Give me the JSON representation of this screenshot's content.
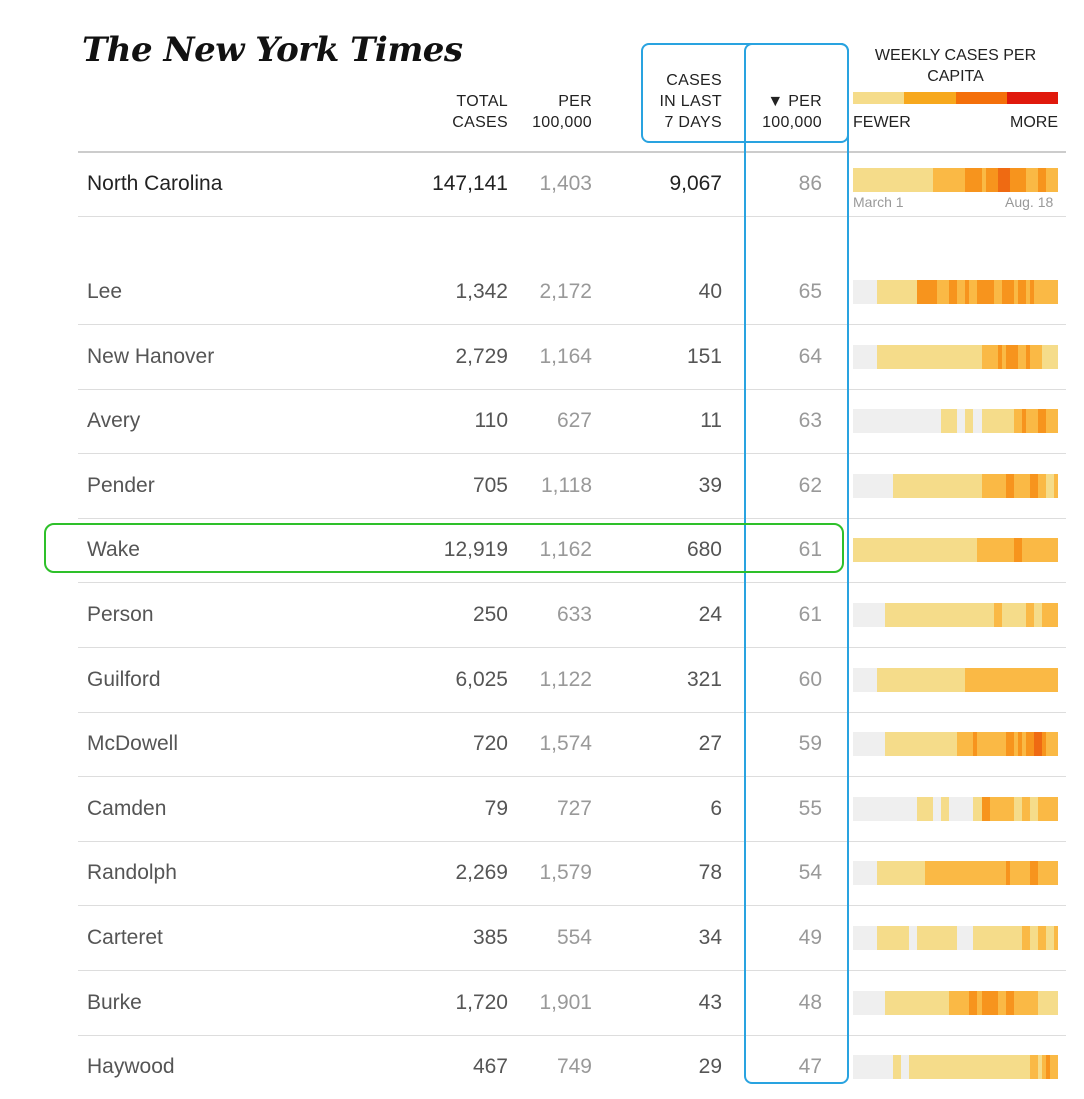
{
  "brand": {
    "logo": "The New York Times"
  },
  "headers": {
    "total_cases": [
      "TOTAL",
      "CASES"
    ],
    "per_100k": [
      "PER",
      "100,000"
    ],
    "cases_7_days": [
      "CASES",
      "IN LAST",
      "7 DAYS"
    ],
    "per_100k_7": [
      "▼ PER",
      "100,000"
    ]
  },
  "legend": {
    "title_lines": [
      "WEEKLY CASES PER",
      "CAPITA"
    ],
    "fewer": "FEWER",
    "more": "MORE",
    "colors": [
      "#f5dc8a",
      "#f7a81d",
      "#f46f0a",
      "#e0190c"
    ]
  },
  "state": {
    "name": "North Carolina",
    "total": "147,141",
    "per100k": "1,403",
    "last7": "9,067",
    "per100k7": "86",
    "start_label": "March 1",
    "end_label": "Aug. 18",
    "spark": [
      1,
      1,
      1,
      1,
      1,
      1,
      1,
      1,
      1,
      1,
      1,
      1,
      1,
      1,
      1,
      1,
      1,
      1,
      1,
      1,
      2,
      2,
      2,
      2,
      2,
      2,
      2,
      2,
      3,
      3,
      3,
      3,
      2,
      3,
      3,
      3,
      4,
      4,
      4,
      3,
      3,
      3,
      3,
      2,
      2,
      2,
      3,
      3,
      2,
      2,
      2
    ]
  },
  "counties": [
    {
      "name": "Lee",
      "total": "1,342",
      "per100k": "2,172",
      "last7": "40",
      "per100k7": "65",
      "spark": [
        0,
        0,
        0,
        0,
        0,
        0,
        1,
        1,
        1,
        1,
        1,
        1,
        1,
        1,
        1,
        1,
        3,
        3,
        3,
        3,
        3,
        2,
        2,
        2,
        3,
        3,
        2,
        2,
        3,
        2,
        2,
        3,
        3,
        3,
        3,
        2,
        2,
        3,
        3,
        3,
        2,
        3,
        3,
        2,
        3,
        2,
        2,
        2,
        2,
        2,
        2
      ]
    },
    {
      "name": "New Hanover",
      "total": "2,729",
      "per100k": "1,164",
      "last7": "151",
      "per100k7": "64",
      "spark": [
        0,
        0,
        0,
        0,
        0,
        0,
        1,
        1,
        1,
        1,
        1,
        1,
        1,
        1,
        1,
        1,
        1,
        1,
        1,
        1,
        1,
        1,
        1,
        1,
        1,
        1,
        1,
        1,
        1,
        1,
        1,
        1,
        2,
        2,
        2,
        2,
        3,
        2,
        3,
        3,
        3,
        2,
        2,
        3,
        2,
        2,
        2,
        1,
        1,
        1,
        1
      ]
    },
    {
      "name": "Avery",
      "total": "110",
      "per100k": "627",
      "last7": "11",
      "per100k7": "63",
      "spark": [
        0,
        0,
        0,
        0,
        0,
        0,
        0,
        0,
        0,
        0,
        0,
        0,
        0,
        0,
        0,
        0,
        0,
        0,
        0,
        0,
        0,
        0,
        1,
        1,
        1,
        1,
        0,
        0,
        1,
        1,
        0,
        0,
        1,
        1,
        1,
        1,
        1,
        1,
        1,
        1,
        2,
        2,
        3,
        2,
        2,
        2,
        3,
        3,
        2,
        2,
        2
      ]
    },
    {
      "name": "Pender",
      "total": "705",
      "per100k": "1,118",
      "last7": "39",
      "per100k7": "62",
      "spark": [
        0,
        0,
        0,
        0,
        0,
        0,
        0,
        0,
        0,
        0,
        1,
        1,
        1,
        1,
        1,
        1,
        1,
        1,
        1,
        1,
        1,
        1,
        1,
        1,
        1,
        1,
        1,
        1,
        1,
        1,
        1,
        1,
        2,
        2,
        2,
        2,
        2,
        2,
        3,
        3,
        2,
        2,
        2,
        2,
        3,
        3,
        2,
        2,
        1,
        1,
        2
      ]
    },
    {
      "name": "Wake",
      "total": "12,919",
      "per100k": "1,162",
      "last7": "680",
      "per100k7": "61",
      "spark": [
        1,
        1,
        1,
        1,
        1,
        1,
        1,
        1,
        1,
        1,
        1,
        1,
        1,
        1,
        1,
        1,
        1,
        1,
        1,
        1,
        1,
        1,
        1,
        1,
        1,
        1,
        1,
        1,
        1,
        1,
        1,
        2,
        2,
        2,
        2,
        2,
        2,
        2,
        2,
        2,
        3,
        3,
        2,
        2,
        2,
        2,
        2,
        2,
        2,
        2,
        2
      ]
    },
    {
      "name": "Person",
      "total": "250",
      "per100k": "633",
      "last7": "24",
      "per100k7": "61",
      "spark": [
        0,
        0,
        0,
        0,
        0,
        0,
        0,
        0,
        1,
        1,
        1,
        1,
        1,
        1,
        1,
        1,
        1,
        1,
        1,
        1,
        1,
        1,
        1,
        1,
        1,
        1,
        1,
        1,
        1,
        1,
        1,
        1,
        1,
        1,
        1,
        2,
        2,
        1,
        1,
        1,
        1,
        1,
        1,
        2,
        2,
        1,
        1,
        2,
        2,
        2,
        2
      ]
    },
    {
      "name": "Guilford",
      "total": "6,025",
      "per100k": "1,122",
      "last7": "321",
      "per100k7": "60",
      "spark": [
        0,
        0,
        0,
        0,
        0,
        0,
        1,
        1,
        1,
        1,
        1,
        1,
        1,
        1,
        1,
        1,
        1,
        1,
        1,
        1,
        1,
        1,
        1,
        1,
        1,
        1,
        1,
        1,
        2,
        2,
        2,
        2,
        2,
        2,
        2,
        2,
        2,
        2,
        2,
        2,
        2,
        2,
        2,
        2,
        2,
        2,
        2,
        2,
        2,
        2,
        2
      ]
    },
    {
      "name": "McDowell",
      "total": "720",
      "per100k": "1,574",
      "last7": "27",
      "per100k7": "59",
      "spark": [
        0,
        0,
        0,
        0,
        0,
        0,
        0,
        0,
        1,
        1,
        1,
        1,
        1,
        1,
        1,
        1,
        1,
        1,
        1,
        1,
        1,
        1,
        1,
        1,
        1,
        1,
        2,
        2,
        2,
        2,
        3,
        2,
        2,
        2,
        2,
        2,
        2,
        2,
        3,
        3,
        2,
        3,
        2,
        3,
        3,
        4,
        4,
        3,
        2,
        2,
        2
      ]
    },
    {
      "name": "Camden",
      "total": "79",
      "per100k": "727",
      "last7": "6",
      "per100k7": "55",
      "spark": [
        0,
        0,
        0,
        0,
        0,
        0,
        0,
        0,
        0,
        0,
        0,
        0,
        0,
        0,
        0,
        0,
        1,
        1,
        1,
        1,
        0,
        0,
        1,
        1,
        0,
        0,
        0,
        0,
        0,
        0,
        1,
        1,
        3,
        3,
        2,
        2,
        2,
        2,
        2,
        2,
        1,
        1,
        2,
        2,
        1,
        1,
        2,
        2,
        2,
        2,
        2
      ]
    },
    {
      "name": "Randolph",
      "total": "2,269",
      "per100k": "1,579",
      "last7": "78",
      "per100k7": "54",
      "spark": [
        0,
        0,
        0,
        0,
        0,
        0,
        1,
        1,
        1,
        1,
        1,
        1,
        1,
        1,
        1,
        1,
        1,
        1,
        2,
        2,
        2,
        2,
        2,
        2,
        2,
        2,
        2,
        2,
        2,
        2,
        2,
        2,
        2,
        2,
        2,
        2,
        2,
        2,
        3,
        2,
        2,
        2,
        2,
        2,
        3,
        3,
        2,
        2,
        2,
        2,
        2
      ]
    },
    {
      "name": "Carteret",
      "total": "385",
      "per100k": "554",
      "last7": "34",
      "per100k7": "49",
      "spark": [
        0,
        0,
        0,
        0,
        0,
        0,
        1,
        1,
        1,
        1,
        1,
        1,
        1,
        1,
        0,
        0,
        1,
        1,
        1,
        1,
        1,
        1,
        1,
        1,
        1,
        1,
        0,
        0,
        0,
        0,
        1,
        1,
        1,
        1,
        1,
        1,
        1,
        1,
        1,
        1,
        1,
        1,
        2,
        2,
        1,
        1,
        2,
        2,
        1,
        1,
        2
      ]
    },
    {
      "name": "Burke",
      "total": "1,720",
      "per100k": "1,901",
      "last7": "43",
      "per100k7": "48",
      "spark": [
        0,
        0,
        0,
        0,
        0,
        0,
        0,
        0,
        1,
        1,
        1,
        1,
        1,
        1,
        1,
        1,
        1,
        1,
        1,
        1,
        1,
        1,
        1,
        1,
        2,
        2,
        2,
        2,
        2,
        3,
        3,
        2,
        3,
        3,
        3,
        3,
        2,
        2,
        3,
        3,
        2,
        2,
        2,
        2,
        2,
        2,
        1,
        1,
        1,
        1,
        1
      ]
    },
    {
      "name": "Haywood",
      "total": "467",
      "per100k": "749",
      "last7": "29",
      "per100k7": "47",
      "spark": [
        0,
        0,
        0,
        0,
        0,
        0,
        0,
        0,
        0,
        0,
        1,
        1,
        0,
        0,
        1,
        1,
        1,
        1,
        1,
        1,
        1,
        1,
        1,
        1,
        1,
        1,
        1,
        1,
        1,
        1,
        1,
        1,
        1,
        1,
        1,
        1,
        1,
        1,
        1,
        1,
        1,
        1,
        1,
        1,
        2,
        2,
        1,
        2,
        3,
        2,
        2
      ]
    }
  ],
  "spark_colors": [
    "#efefef",
    "#f5dc8a",
    "#fab945",
    "#f7941d",
    "#ef6a12"
  ]
}
